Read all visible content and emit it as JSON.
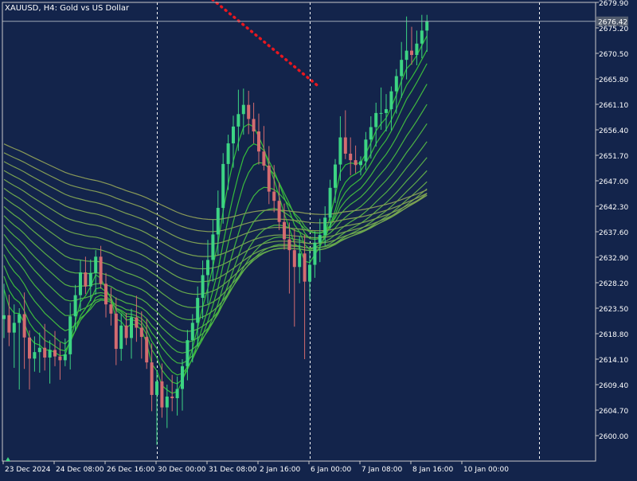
{
  "chart_title": "XAUUSD, H4:  Gold vs US Dollar",
  "colors": {
    "background": "#13244b",
    "frame": "#c8c8c8",
    "text": "#ffffff",
    "bull_candle": "#3cd484",
    "bear_candle": "#d46b70",
    "ribbon_short": "#2fbf3a",
    "ribbon_long": "#8a9a58",
    "trendline": "#e8171f",
    "current_price_line": "#9fa8b6",
    "price_tag_bg": "#525c6e"
  },
  "chart_data": {
    "type": "candlestick",
    "title": "XAUUSD, H4:  Gold vs US Dollar",
    "symbol": "XAUUSD",
    "timeframe": "H4",
    "current_price": 2676.42,
    "ylim": [
      2597.0,
      2680.0
    ],
    "y_ticks": [
      2679.9,
      2675.2,
      2670.5,
      2665.8,
      2661.1,
      2656.4,
      2651.7,
      2647.0,
      2642.3,
      2637.6,
      2632.9,
      2628.2,
      2623.5,
      2618.8,
      2614.1,
      2609.4,
      2604.7,
      2600.0
    ],
    "x_labels": [
      "23 Dec 2024",
      "24 Dec 08:00",
      "26 Dec 16:00",
      "30 Dec 00:00",
      "31 Dec 08:00",
      "2 Jan 16:00",
      "6 Jan 00:00",
      "7 Jan 08:00",
      "8 Jan 16:00",
      "10 Jan 00:00"
    ],
    "x_label_bar_index": [
      0,
      10,
      20,
      30,
      40,
      50,
      60,
      70,
      80,
      90
    ],
    "separator_bar_index": [
      30,
      60,
      105
    ],
    "candles": [
      {
        "o": 2621.5,
        "h": 2628.0,
        "l": 2618.0,
        "c": 2622.2
      },
      {
        "o": 2622.2,
        "h": 2626.0,
        "l": 2616.5,
        "c": 2619.0
      },
      {
        "o": 2619.0,
        "h": 2624.2,
        "l": 2612.5,
        "c": 2620.8
      },
      {
        "o": 2620.8,
        "h": 2623.5,
        "l": 2608.5,
        "c": 2622.4
      },
      {
        "o": 2622.4,
        "h": 2626.4,
        "l": 2612.3,
        "c": 2618.1
      },
      {
        "o": 2618.1,
        "h": 2619.4,
        "l": 2608.5,
        "c": 2614.2
      },
      {
        "o": 2614.2,
        "h": 2618.3,
        "l": 2611.8,
        "c": 2615.4
      },
      {
        "o": 2615.4,
        "h": 2619.0,
        "l": 2611.6,
        "c": 2616.2
      },
      {
        "o": 2616.2,
        "h": 2620.6,
        "l": 2612.0,
        "c": 2614.4
      },
      {
        "o": 2614.4,
        "h": 2617.6,
        "l": 2609.6,
        "c": 2615.8
      },
      {
        "o": 2615.8,
        "h": 2619.3,
        "l": 2612.8,
        "c": 2614.6
      },
      {
        "o": 2614.6,
        "h": 2617.2,
        "l": 2610.3,
        "c": 2613.9
      },
      {
        "o": 2613.9,
        "h": 2617.9,
        "l": 2612.8,
        "c": 2615.0
      },
      {
        "o": 2615.0,
        "h": 2624.5,
        "l": 2612.2,
        "c": 2622.0
      },
      {
        "o": 2622.0,
        "h": 2627.8,
        "l": 2619.3,
        "c": 2625.9
      },
      {
        "o": 2625.9,
        "h": 2632.4,
        "l": 2622.9,
        "c": 2630.1
      },
      {
        "o": 2630.1,
        "h": 2633.0,
        "l": 2626.1,
        "c": 2627.5
      },
      {
        "o": 2627.5,
        "h": 2632.5,
        "l": 2624.8,
        "c": 2630.0
      },
      {
        "o": 2630.0,
        "h": 2634.2,
        "l": 2626.0,
        "c": 2633.0
      },
      {
        "o": 2633.0,
        "h": 2635.0,
        "l": 2627.1,
        "c": 2628.0
      },
      {
        "o": 2628.0,
        "h": 2630.0,
        "l": 2621.8,
        "c": 2624.2
      },
      {
        "o": 2624.2,
        "h": 2627.3,
        "l": 2620.3,
        "c": 2622.5
      },
      {
        "o": 2622.5,
        "h": 2625.5,
        "l": 2613.0,
        "c": 2616.0
      },
      {
        "o": 2616.0,
        "h": 2622.5,
        "l": 2613.8,
        "c": 2620.3
      },
      {
        "o": 2620.3,
        "h": 2622.6,
        "l": 2616.7,
        "c": 2618.0
      },
      {
        "o": 2618.0,
        "h": 2623.4,
        "l": 2614.2,
        "c": 2621.8
      },
      {
        "o": 2621.8,
        "h": 2625.8,
        "l": 2617.3,
        "c": 2619.9
      },
      {
        "o": 2619.9,
        "h": 2622.9,
        "l": 2614.2,
        "c": 2618.2
      },
      {
        "o": 2618.2,
        "h": 2621.5,
        "l": 2612.3,
        "c": 2613.5
      },
      {
        "o": 2613.5,
        "h": 2617.0,
        "l": 2604.5,
        "c": 2607.5
      },
      {
        "o": 2607.5,
        "h": 2612.0,
        "l": 2598.3,
        "c": 2610.0
      },
      {
        "o": 2610.0,
        "h": 2613.3,
        "l": 2603.3,
        "c": 2605.2
      },
      {
        "o": 2605.2,
        "h": 2609.4,
        "l": 2601.4,
        "c": 2607.2
      },
      {
        "o": 2607.2,
        "h": 2611.2,
        "l": 2604.5,
        "c": 2606.9
      },
      {
        "o": 2606.9,
        "h": 2610.9,
        "l": 2603.7,
        "c": 2608.6
      },
      {
        "o": 2608.6,
        "h": 2614.1,
        "l": 2604.6,
        "c": 2612.8
      },
      {
        "o": 2612.8,
        "h": 2619.5,
        "l": 2610.2,
        "c": 2617.6
      },
      {
        "o": 2617.6,
        "h": 2622.4,
        "l": 2613.5,
        "c": 2620.8
      },
      {
        "o": 2620.8,
        "h": 2627.5,
        "l": 2616.4,
        "c": 2625.4
      },
      {
        "o": 2625.4,
        "h": 2632.3,
        "l": 2621.5,
        "c": 2629.6
      },
      {
        "o": 2629.6,
        "h": 2636.1,
        "l": 2624.3,
        "c": 2632.4
      },
      {
        "o": 2632.4,
        "h": 2639.9,
        "l": 2628.4,
        "c": 2637.1
      },
      {
        "o": 2637.1,
        "h": 2645.2,
        "l": 2633.3,
        "c": 2642.0
      },
      {
        "o": 2642.0,
        "h": 2652.1,
        "l": 2639.1,
        "c": 2650.1
      },
      {
        "o": 2650.1,
        "h": 2655.5,
        "l": 2645.3,
        "c": 2653.9
      },
      {
        "o": 2653.9,
        "h": 2659.0,
        "l": 2649.4,
        "c": 2657.0
      },
      {
        "o": 2657.0,
        "h": 2663.8,
        "l": 2652.5,
        "c": 2659.3
      },
      {
        "o": 2659.3,
        "h": 2664.0,
        "l": 2655.5,
        "c": 2661.0
      },
      {
        "o": 2661.0,
        "h": 2663.6,
        "l": 2655.6,
        "c": 2658.4
      },
      {
        "o": 2658.4,
        "h": 2661.4,
        "l": 2653.9,
        "c": 2656.1
      },
      {
        "o": 2656.1,
        "h": 2659.4,
        "l": 2650.0,
        "c": 2652.4
      },
      {
        "o": 2652.4,
        "h": 2657.1,
        "l": 2648.9,
        "c": 2649.8
      },
      {
        "o": 2649.8,
        "h": 2653.4,
        "l": 2642.7,
        "c": 2645.0
      },
      {
        "o": 2645.0,
        "h": 2649.9,
        "l": 2641.2,
        "c": 2643.3
      },
      {
        "o": 2643.3,
        "h": 2646.7,
        "l": 2637.9,
        "c": 2639.4
      },
      {
        "o": 2639.4,
        "h": 2642.8,
        "l": 2634.3,
        "c": 2636.2
      },
      {
        "o": 2636.2,
        "h": 2639.3,
        "l": 2626.2,
        "c": 2634.2
      },
      {
        "o": 2634.2,
        "h": 2638.1,
        "l": 2620.1,
        "c": 2631.1
      },
      {
        "o": 2631.1,
        "h": 2636.8,
        "l": 2628.1,
        "c": 2633.6
      },
      {
        "o": 2633.6,
        "h": 2637.1,
        "l": 2614.1,
        "c": 2628.4
      },
      {
        "o": 2628.4,
        "h": 2634.1,
        "l": 2625.1,
        "c": 2631.5
      },
      {
        "o": 2631.5,
        "h": 2637.7,
        "l": 2629.1,
        "c": 2635.6
      },
      {
        "o": 2635.6,
        "h": 2640.0,
        "l": 2632.0,
        "c": 2637.0
      },
      {
        "o": 2637.0,
        "h": 2642.3,
        "l": 2635.0,
        "c": 2640.2
      },
      {
        "o": 2640.2,
        "h": 2647.2,
        "l": 2638.1,
        "c": 2645.7
      },
      {
        "o": 2645.7,
        "h": 2651.0,
        "l": 2642.9,
        "c": 2650.0
      },
      {
        "o": 2650.0,
        "h": 2658.9,
        "l": 2647.0,
        "c": 2655.0
      },
      {
        "o": 2655.0,
        "h": 2660.0,
        "l": 2651.0,
        "c": 2652.0
      },
      {
        "o": 2652.0,
        "h": 2655.0,
        "l": 2648.0,
        "c": 2650.8
      },
      {
        "o": 2650.8,
        "h": 2653.5,
        "l": 2648.4,
        "c": 2649.9
      },
      {
        "o": 2649.9,
        "h": 2651.5,
        "l": 2648.0,
        "c": 2650.6
      },
      {
        "o": 2650.6,
        "h": 2656.0,
        "l": 2649.0,
        "c": 2654.6
      },
      {
        "o": 2654.6,
        "h": 2658.9,
        "l": 2651.1,
        "c": 2656.9
      },
      {
        "o": 2656.9,
        "h": 2661.4,
        "l": 2653.3,
        "c": 2659.5
      },
      {
        "o": 2659.5,
        "h": 2664.2,
        "l": 2656.4,
        "c": 2659.5
      },
      {
        "o": 2659.5,
        "h": 2663.0,
        "l": 2656.1,
        "c": 2660.2
      },
      {
        "o": 2660.2,
        "h": 2664.4,
        "l": 2656.3,
        "c": 2663.5
      },
      {
        "o": 2663.5,
        "h": 2667.6,
        "l": 2659.4,
        "c": 2666.3
      },
      {
        "o": 2666.3,
        "h": 2672.6,
        "l": 2662.3,
        "c": 2669.3
      },
      {
        "o": 2669.3,
        "h": 2677.3,
        "l": 2665.7,
        "c": 2671.0
      },
      {
        "o": 2671.0,
        "h": 2675.4,
        "l": 2668.4,
        "c": 2670.2
      },
      {
        "o": 2670.2,
        "h": 2674.7,
        "l": 2668.3,
        "c": 2672.3
      },
      {
        "o": 2672.3,
        "h": 2677.6,
        "l": 2669.6,
        "c": 2674.7
      },
      {
        "o": 2674.7,
        "h": 2677.6,
        "l": 2670.8,
        "c": 2676.4
      }
    ],
    "moving_average_ribbon": {
      "count": 16,
      "note_colors": "short periods bright green, long periods olive"
    }
  },
  "trendline": {
    "start": {
      "bar_index": 35,
      "price": 2685.0
    },
    "end": {
      "bar_index": 62,
      "price": 2664.2
    }
  }
}
